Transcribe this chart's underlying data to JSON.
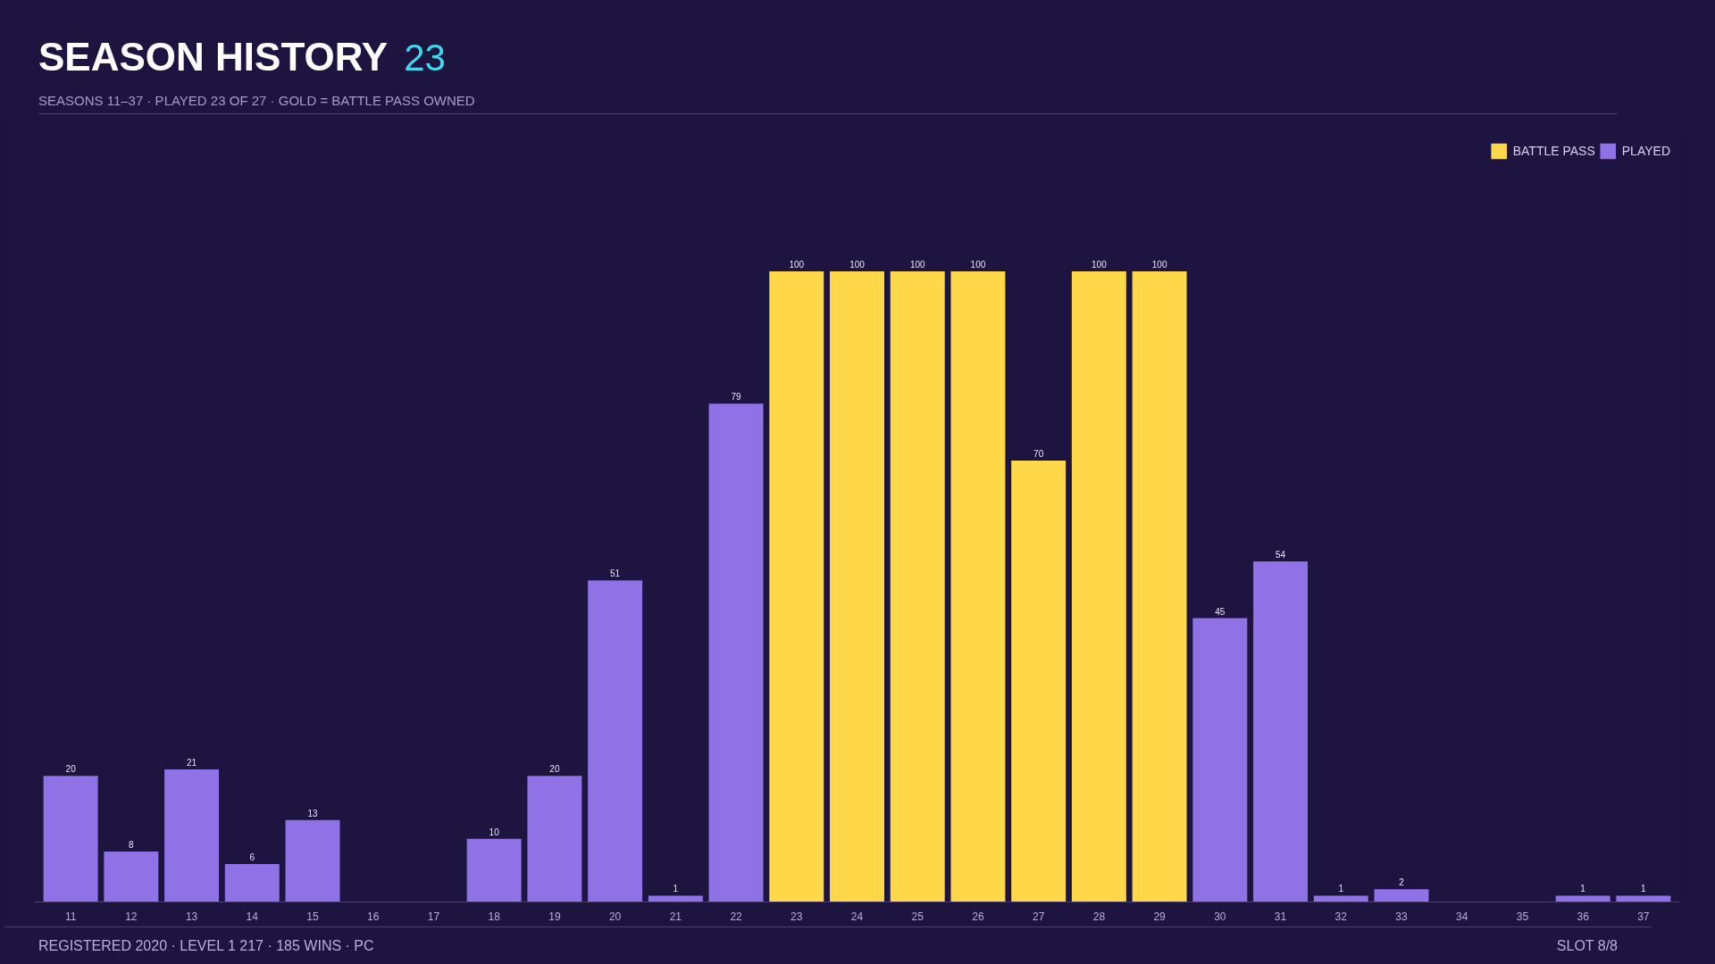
{
  "chart_data": {
    "type": "bar",
    "title": "SEASON HISTORY",
    "subtitle": "SEASONS 11–37 · PLAYED 23 OF 27 · GOLD = BATTLE PASS OWNED",
    "annotations": [
      "23",
      "REGISTERED 2020 · LEVEL 1 217 · 185 WINS · PC",
      "SLOT 8/8"
    ],
    "categories": [
      "11",
      "12",
      "13",
      "14",
      "15",
      "16",
      "17",
      "18",
      "19",
      "20",
      "21",
      "22",
      "23",
      "24",
      "25",
      "26",
      "27",
      "28",
      "29",
      "30",
      "31",
      "32",
      "33",
      "34",
      "35",
      "36",
      "37"
    ],
    "series": [
      {
        "name": "BATTLE PASS",
        "color": "#ffd84a",
        "values": [
          null,
          null,
          null,
          null,
          null,
          null,
          null,
          null,
          null,
          null,
          null,
          null,
          100,
          100,
          100,
          100,
          70,
          100,
          100,
          null,
          null,
          null,
          null,
          null,
          null,
          null,
          null
        ]
      },
      {
        "name": "PLAYED",
        "color": "#8e72e6",
        "values": [
          20,
          8,
          21,
          6,
          13,
          null,
          null,
          10,
          20,
          51,
          1,
          79,
          null,
          null,
          null,
          null,
          null,
          null,
          null,
          45,
          54,
          1,
          2,
          null,
          null,
          1,
          1
        ]
      }
    ],
    "data_labels": true,
    "legend": "top right",
    "grid": false
  }
}
